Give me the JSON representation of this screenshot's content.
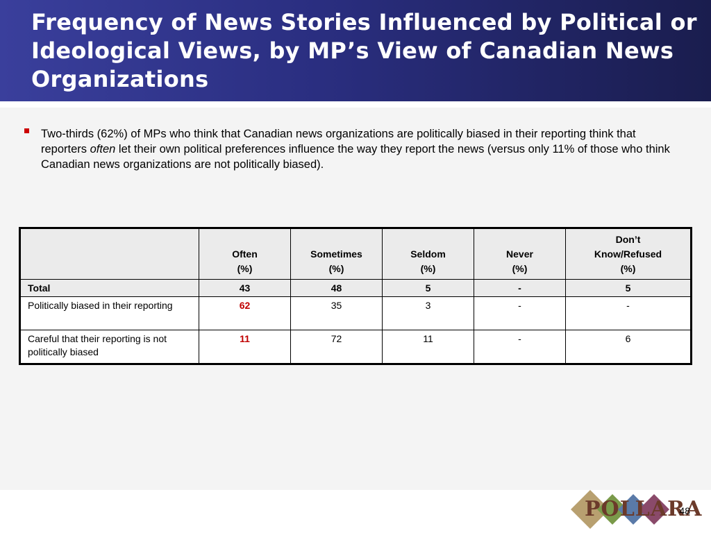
{
  "slide": {
    "title": "Frequency of News Stories Influenced by Political or Ideological Views, by MP’s View of Canadian News Organizations",
    "bullet": {
      "part1": "Two-thirds (62%) of MPs who think that Canadian news organizations are politically biased in their reporting think that reporters ",
      "emphasis": "often",
      "part2": " let their own political preferences influence the way they report the news (versus only 11% of those who think Canadian news organizations are not politically biased)."
    },
    "page_number": "48",
    "logo_text": "POLLARA"
  },
  "table": {
    "headers": [
      {
        "line1": "",
        "line2": "Often",
        "line3": "(%)"
      },
      {
        "line1": "",
        "line2": "Sometimes",
        "line3": "(%)"
      },
      {
        "line1": "",
        "line2": "Seldom",
        "line3": "(%)"
      },
      {
        "line1": "",
        "line2": "Never",
        "line3": "(%)"
      },
      {
        "line1": "Don’t",
        "line2": "Know/Refused",
        "line3": "(%)"
      }
    ],
    "rows": [
      {
        "label": "Total",
        "values": [
          "43",
          "48",
          "5",
          "-",
          "5"
        ]
      },
      {
        "label": "Politically biased in their reporting",
        "values": [
          "62",
          "35",
          "3",
          "-",
          "-"
        ]
      },
      {
        "label": "Careful that their reporting is not politically biased",
        "values": [
          "11",
          "72",
          "11",
          "-",
          "6"
        ]
      }
    ]
  },
  "colors": {
    "header_gradient_start": "#3a3f9c",
    "header_gradient_end": "#1a1d4e",
    "bullet_marker": "#cc0000",
    "highlight_value": "#c00000"
  }
}
